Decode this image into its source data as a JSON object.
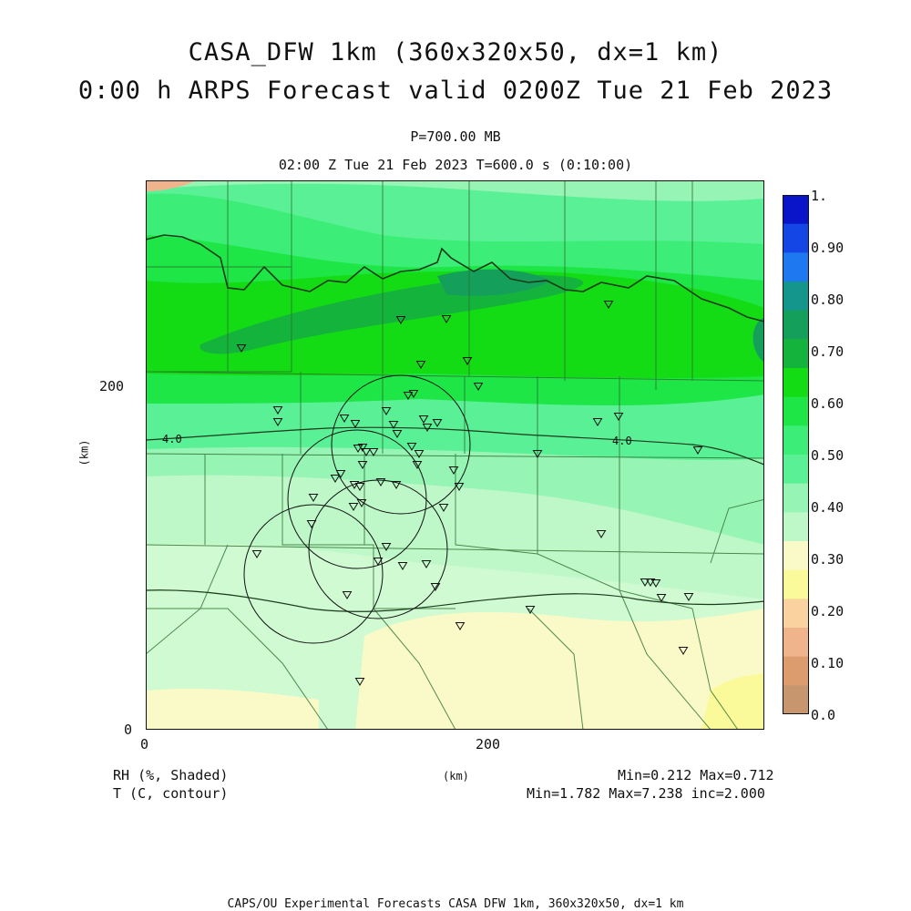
{
  "header": {
    "title_line1": "CASA_DFW 1km (360x320x50, dx=1 km)",
    "title_line2": "0:00 h ARPS Forecast valid 0200Z Tue 21 Feb 2023",
    "pressure_level": "P=700.00 MB",
    "time_line": "02:00 Z Tue 21 Feb 2023    T=600.0 s (0:10:00)"
  },
  "axes": {
    "y_label": "(km)",
    "x_label": "(km)",
    "x_ticks": [
      "0",
      "200"
    ],
    "y_ticks": [
      "0",
      "200"
    ]
  },
  "contour_label": "4.0",
  "colorbar": {
    "labels": [
      "1.",
      "0.90",
      "0.80",
      "0.70",
      "0.60",
      "0.50",
      "0.40",
      "0.30",
      "0.20",
      "0.10",
      "0.0"
    ],
    "colors": [
      "#0a14c8",
      "#1446e6",
      "#1e78f0",
      "#14968c",
      "#14a05a",
      "#14b43c",
      "#14dc14",
      "#1ee646",
      "#3cee78",
      "#5af096",
      "#96f5b4",
      "#bef8c8",
      "#fafac8",
      "#fafa9a",
      "#fad2a0",
      "#f0b48c",
      "#dc9c6e",
      "#c8966e"
    ]
  },
  "footer": {
    "field1_name": "RH (%, Shaded)",
    "field2_name": "T (C, contour)",
    "field1_stats": "Min=0.212 Max=0.712",
    "field2_stats": "Min=1.782 Max=7.238 inc=2.000",
    "credit": "CAPS/OU Experimental Forecasts  CASA DFW 1km, 360x320x50, dx=1 km"
  }
}
